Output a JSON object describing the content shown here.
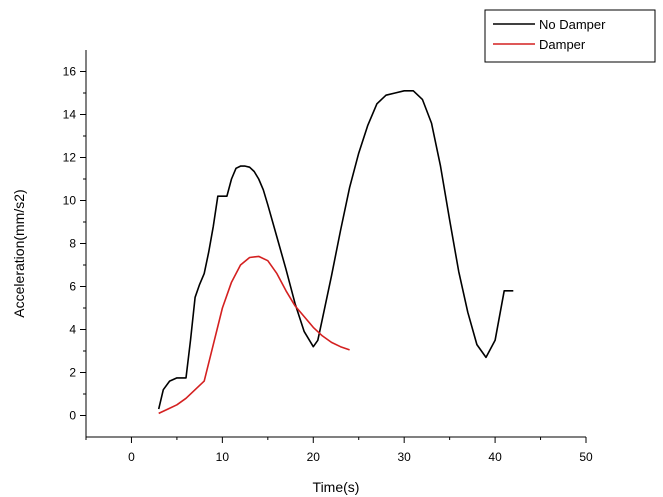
{
  "chart_data": {
    "type": "line",
    "title": "",
    "xlabel": "Time(s)",
    "ylabel": "Acceleration(mm/s2)",
    "xlim": [
      -5,
      50
    ],
    "ylim": [
      -1,
      17
    ],
    "x_ticks": [
      0,
      10,
      20,
      30,
      40,
      50
    ],
    "y_ticks": [
      0,
      2,
      4,
      6,
      8,
      10,
      12,
      14,
      16
    ],
    "grid": false,
    "legend_position": "top-right",
    "series": [
      {
        "name": "No Damper",
        "color": "#000000",
        "x": [
          3,
          3.5,
          4.2,
          5,
          6,
          6.5,
          7,
          7.5,
          8,
          8.5,
          9,
          9.5,
          10,
          10.5,
          11,
          11.5,
          12,
          12.5,
          13,
          13.5,
          14,
          14.5,
          15,
          16,
          17,
          18,
          19,
          20,
          20.5,
          21,
          22,
          23,
          24,
          25,
          26,
          27,
          28,
          29,
          30,
          31,
          32,
          33,
          34,
          35,
          36,
          37,
          38,
          39,
          40,
          41,
          42
        ],
        "y": [
          0.3,
          1.2,
          1.6,
          1.75,
          1.75,
          3.5,
          5.5,
          6.1,
          6.6,
          7.6,
          8.8,
          10.2,
          10.2,
          10.2,
          11.0,
          11.5,
          11.6,
          11.6,
          11.55,
          11.35,
          11.0,
          10.5,
          9.8,
          8.3,
          6.8,
          5.2,
          3.9,
          3.2,
          3.5,
          4.5,
          6.5,
          8.6,
          10.6,
          12.2,
          13.5,
          14.5,
          14.9,
          15.0,
          15.1,
          15.1,
          14.7,
          13.6,
          11.6,
          9.1,
          6.7,
          4.8,
          3.3,
          2.7,
          3.5,
          5.8,
          5.8
        ]
      },
      {
        "name": "Damper",
        "color": "#d42020",
        "x": [
          3,
          4,
          5,
          6,
          7,
          8,
          9,
          10,
          11,
          12,
          13,
          14,
          15,
          16,
          17,
          18,
          19,
          20,
          21,
          22,
          23,
          24
        ],
        "y": [
          0.1,
          0.3,
          0.5,
          0.8,
          1.2,
          1.6,
          3.3,
          5.0,
          6.2,
          7.0,
          7.35,
          7.4,
          7.2,
          6.6,
          5.8,
          5.1,
          4.6,
          4.1,
          3.7,
          3.4,
          3.2,
          3.05
        ]
      }
    ]
  }
}
